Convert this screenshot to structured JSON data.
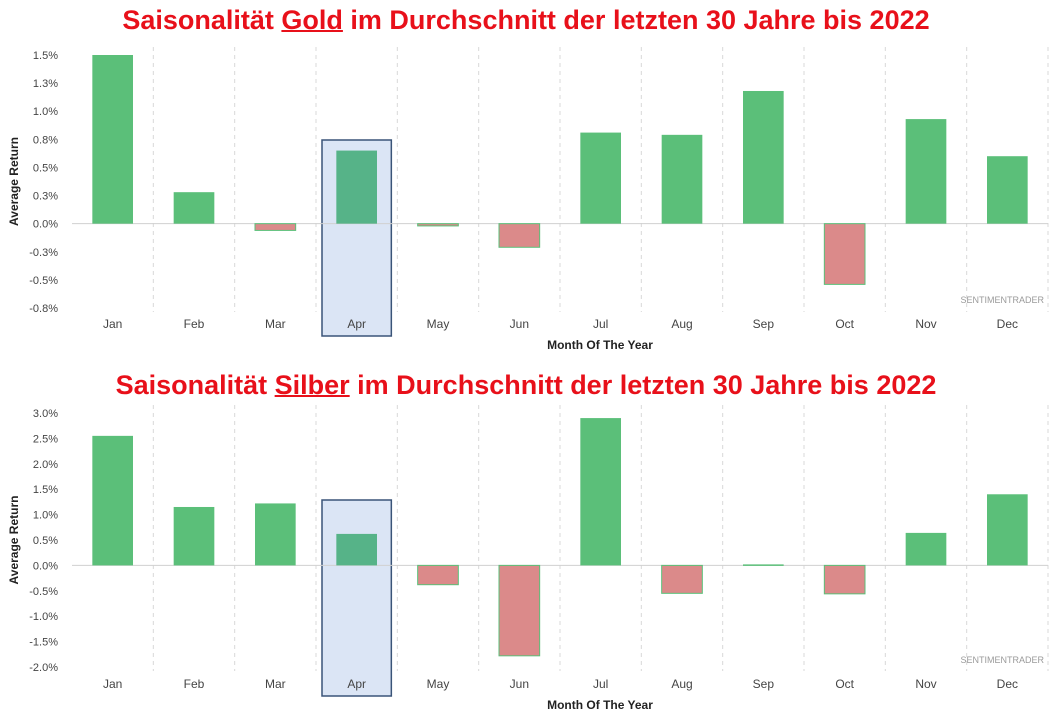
{
  "charts": [
    {
      "id": "gold",
      "title_prefix": "Saisonalität ",
      "title_metal": "Gold",
      "title_suffix": " im Durchschnitt der letzten 30 Jahre bis 2022",
      "watermark": "SENTIMENTRADER",
      "chart_data": {
        "type": "bar",
        "title": "Saisonalität Gold im Durchschnitt der letzten 30 Jahre bis 2022",
        "xlabel": "Month Of The Year",
        "ylabel": "Average Return",
        "categories": [
          "Jan",
          "Feb",
          "Mar",
          "Apr",
          "May",
          "Jun",
          "Jul",
          "Aug",
          "Sep",
          "Oct",
          "Nov",
          "Dec"
        ],
        "values": [
          1.5,
          0.28,
          -0.06,
          0.65,
          -0.02,
          -0.21,
          0.81,
          0.79,
          1.18,
          -0.54,
          0.93,
          0.6
        ],
        "yticks": [
          1.5,
          1.25,
          1.0,
          0.75,
          0.5,
          0.25,
          0.0,
          -0.25,
          -0.5,
          -0.75
        ],
        "ytick_labels": [
          "1.5%",
          "1.3%",
          "1.0%",
          "0.8%",
          "0.5%",
          "0.3%",
          "0.0%",
          "-0.3%",
          "-0.5%",
          "-0.8%"
        ],
        "ylim": [
          -0.75,
          1.5
        ],
        "highlight": "Apr",
        "colors": {
          "positive": "#5bbf79",
          "negative": "#db8a8a",
          "highlight_fill": "#dbe5f5",
          "highlight_border": "#3a5478",
          "highlight_bar": "#56b388"
        }
      }
    },
    {
      "id": "silver",
      "title_prefix": "Saisonalität ",
      "title_metal": "Silber",
      "title_suffix": " im Durchschnitt der letzten 30 Jahre bis 2022",
      "watermark": "SENTIMENTRADER",
      "chart_data": {
        "type": "bar",
        "title": "Saisonalität Silber im Durchschnitt der letzten 30 Jahre bis 2022",
        "xlabel": "Month Of The Year",
        "ylabel": "Average Return",
        "categories": [
          "Jan",
          "Feb",
          "Mar",
          "Apr",
          "May",
          "Jun",
          "Jul",
          "Aug",
          "Sep",
          "Oct",
          "Nov",
          "Dec"
        ],
        "values": [
          2.55,
          1.15,
          1.22,
          0.62,
          -0.38,
          -1.78,
          2.9,
          -0.55,
          0.02,
          -0.56,
          0.64,
          1.4
        ],
        "yticks": [
          3.0,
          2.5,
          2.0,
          1.5,
          1.0,
          0.5,
          0.0,
          -0.5,
          -1.0,
          -1.5,
          -2.0
        ],
        "ytick_labels": [
          "3.0%",
          "2.5%",
          "2.0%",
          "1.5%",
          "1.0%",
          "0.5%",
          "0.0%",
          "-0.5%",
          "-1.0%",
          "-1.5%",
          "-2.0%"
        ],
        "ylim": [
          -2.0,
          3.0
        ],
        "highlight": "Apr",
        "colors": {
          "positive": "#5bbf79",
          "negative": "#db8a8a",
          "highlight_fill": "#dbe5f5",
          "highlight_border": "#3a5478",
          "highlight_bar": "#56b388"
        }
      }
    }
  ]
}
